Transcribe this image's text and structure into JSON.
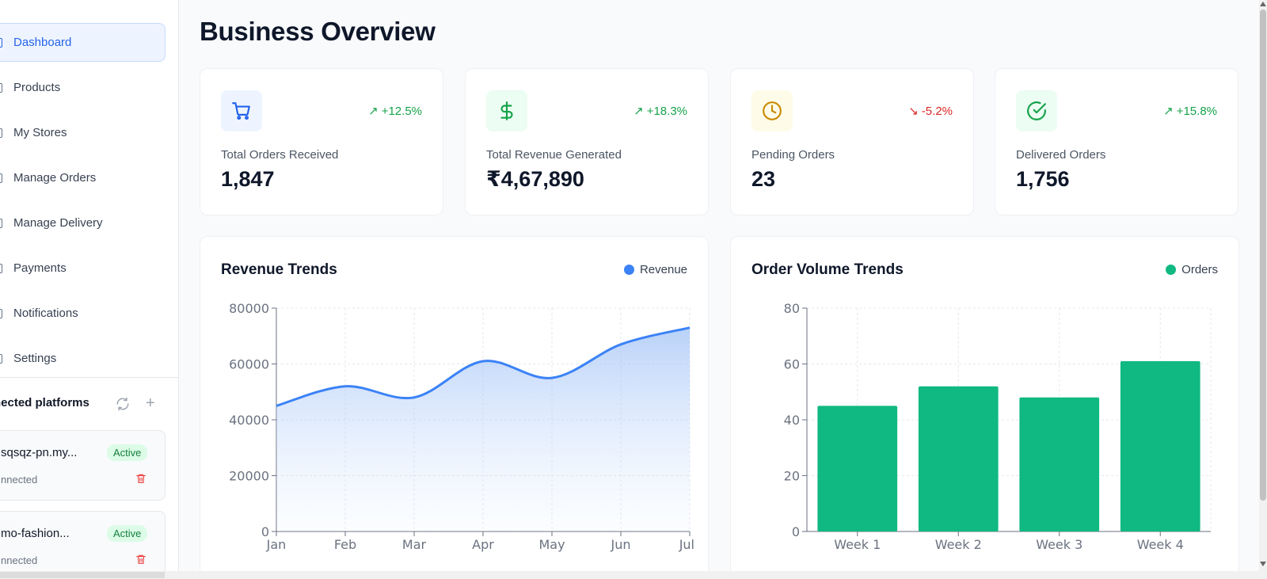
{
  "sidebar": {
    "items": [
      {
        "label": "Dashboard",
        "icon": "dashboard-icon",
        "active": true
      },
      {
        "label": "Products",
        "icon": "package-icon"
      },
      {
        "label": "My Stores",
        "icon": "store-icon"
      },
      {
        "label": "Manage Orders",
        "icon": "cart-icon"
      },
      {
        "label": "Manage Delivery",
        "icon": "truck-icon"
      },
      {
        "label": "Payments",
        "icon": "credit-card-icon"
      },
      {
        "label": "Notifications",
        "icon": "bell-icon"
      },
      {
        "label": "Settings",
        "icon": "gear-icon"
      }
    ],
    "platforms": {
      "title": "nected platforms",
      "cards": [
        {
          "name": "sqsqz-pn.my...",
          "badge": "Active",
          "status": "nnected"
        },
        {
          "name": "mo-fashion...",
          "badge": "Active",
          "status": "nnected"
        }
      ]
    }
  },
  "main": {
    "title": "Business Overview",
    "stats": [
      {
        "label": "Total Orders Received",
        "value": "1,847",
        "trend": "+12.5%",
        "direction": "up",
        "icon": "cart-icon",
        "icon_bg": "#eef4ff",
        "icon_color": "#2563eb"
      },
      {
        "label": "Total Revenue Generated",
        "value": "₹4,67,890",
        "trend": "+18.3%",
        "direction": "up",
        "icon": "dollar-icon",
        "icon_bg": "#ecfdf3",
        "icon_color": "#16a34a"
      },
      {
        "label": "Pending Orders",
        "value": "23",
        "trend": "-5.2%",
        "direction": "down",
        "icon": "clock-icon",
        "icon_bg": "#fefce8",
        "icon_color": "#ca8a04"
      },
      {
        "label": "Delivered Orders",
        "value": "1,756",
        "trend": "+15.8%",
        "direction": "up",
        "icon": "check-circle-icon",
        "icon_bg": "#ecfdf3",
        "icon_color": "#16a34a"
      }
    ],
    "revenue_chart": {
      "title": "Revenue Trends",
      "legend": "Revenue",
      "color": "#3b82f6"
    },
    "orders_chart": {
      "title": "Order Volume Trends",
      "legend": "Orders",
      "color": "#10b981"
    }
  },
  "chart_data": [
    {
      "type": "area",
      "title": "Revenue Trends",
      "categories": [
        "Jan",
        "Feb",
        "Mar",
        "Apr",
        "May",
        "Jun",
        "Jul"
      ],
      "series": [
        {
          "name": "Revenue",
          "values": [
            45000,
            52000,
            48000,
            61000,
            55000,
            67000,
            73000
          ]
        }
      ],
      "ylim": [
        0,
        80000
      ],
      "yticks": [
        0,
        20000,
        40000,
        60000,
        80000
      ],
      "grid": true,
      "legend": "top-right"
    },
    {
      "type": "bar",
      "title": "Order Volume Trends",
      "categories": [
        "Week 1",
        "Week 2",
        "Week 3",
        "Week 4"
      ],
      "series": [
        {
          "name": "Orders",
          "values": [
            45,
            52,
            48,
            61
          ]
        }
      ],
      "ylim": [
        0,
        80
      ],
      "yticks": [
        0,
        20,
        40,
        60,
        80
      ],
      "grid": true,
      "legend": "top-right"
    }
  ]
}
